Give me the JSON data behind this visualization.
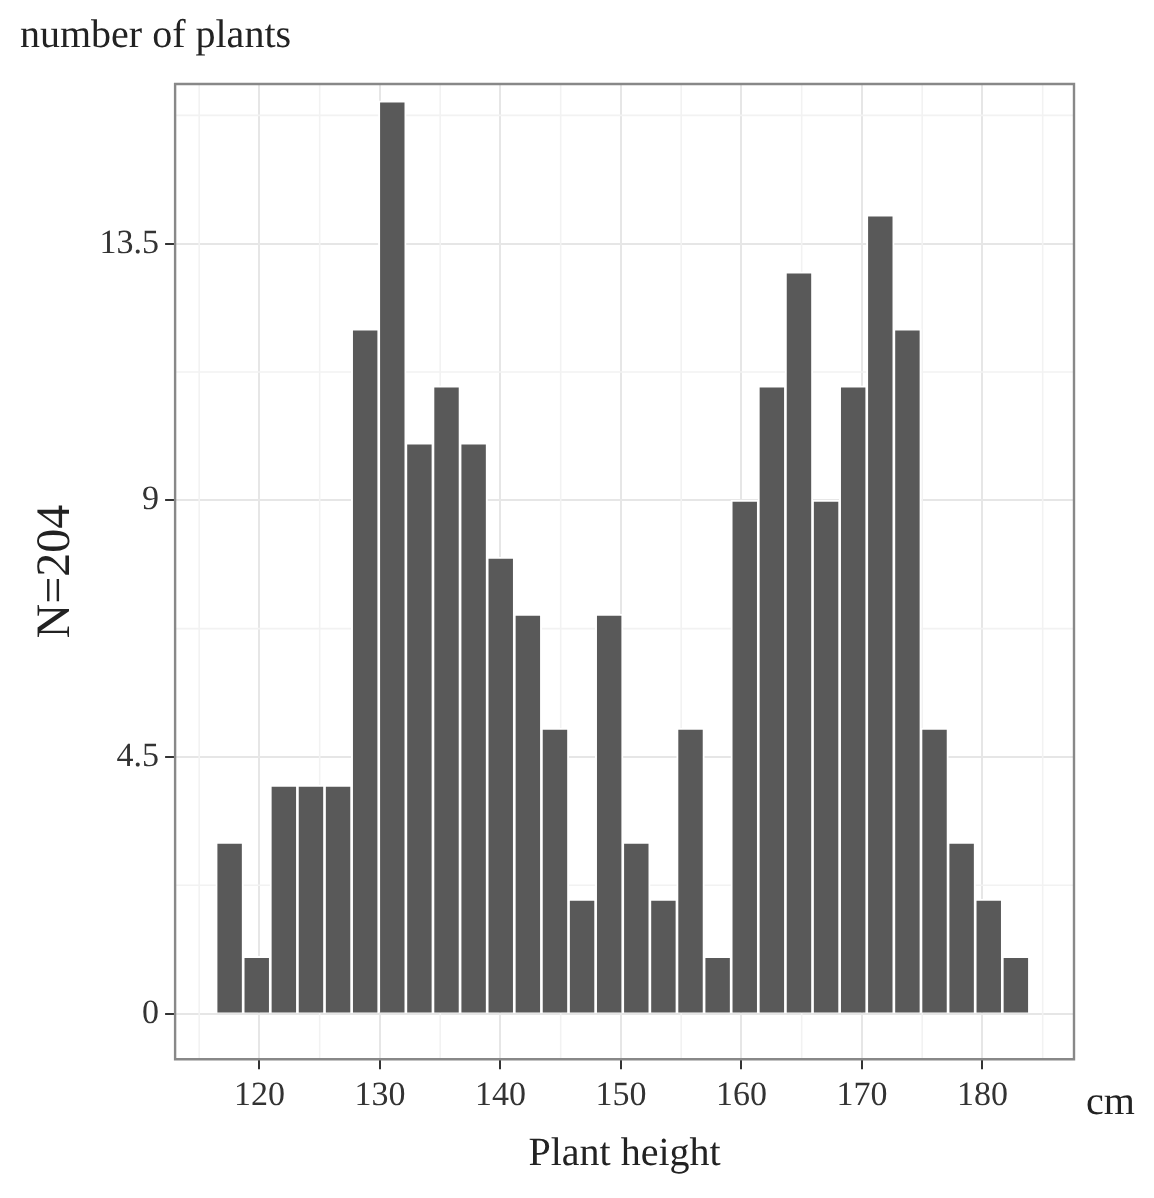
{
  "chart_data": {
    "type": "histogram",
    "title": "number of plants",
    "xlabel": "Plant height",
    "ylabel": "N=204",
    "annotations": [
      "cm"
    ],
    "bins": [
      116.4,
      118.65,
      120.9,
      123.15,
      125.4,
      127.65,
      129.9,
      132.15,
      134.4,
      136.65,
      138.9,
      141.15,
      143.4,
      145.65,
      147.9,
      150.15,
      152.4,
      154.65,
      156.9,
      159.15,
      161.4,
      163.65,
      165.9,
      168.15,
      170.4,
      172.65,
      174.9,
      177.15,
      179.4,
      181.65,
      183.9
    ],
    "values": [
      3,
      1,
      4,
      4,
      4,
      12,
      16,
      10,
      11,
      10,
      8,
      7,
      5,
      2,
      7,
      3,
      2,
      5,
      1,
      9,
      11,
      13,
      9,
      11,
      14,
      12,
      5,
      3,
      2,
      1
    ],
    "color": "#595959",
    "xlim": [
      113,
      187.6
    ],
    "xticks": [
      120,
      130,
      140,
      150,
      160,
      170,
      180
    ],
    "ylim": [
      -0.8,
      16.3
    ],
    "yticks": [
      0,
      4.5,
      9,
      13.5
    ],
    "grid": true
  }
}
